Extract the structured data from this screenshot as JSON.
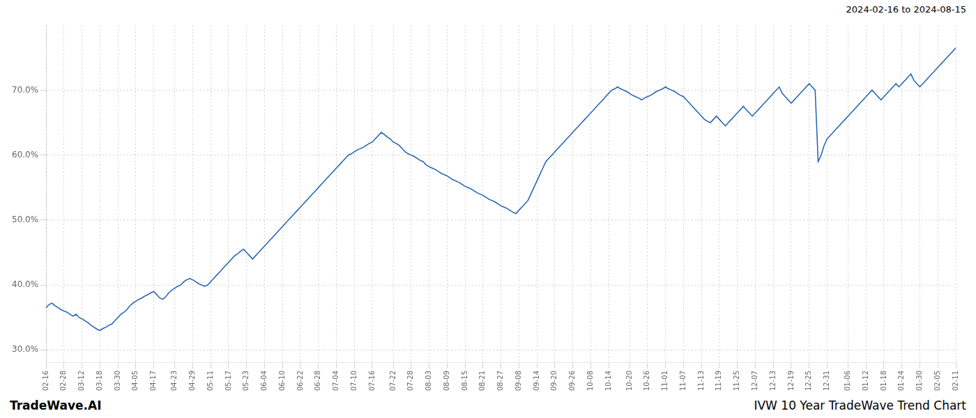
{
  "chart_data": {
    "type": "line",
    "title": "IVW 10 Year TradeWave Trend Chart",
    "annotations": [
      "2024-02-16 to 2024-08-15",
      "TradeWave.AI"
    ],
    "color": "#2060b0",
    "categories": [
      "02-16",
      null,
      null,
      null,
      null,
      null,
      "02-28",
      null,
      null,
      null,
      null,
      null,
      "03-12",
      null,
      null,
      null,
      null,
      null,
      "03-18",
      null,
      null,
      null,
      null,
      null,
      "03-30",
      null,
      null,
      null,
      null,
      null,
      "04-05",
      null,
      null,
      null,
      null,
      null,
      "04-17",
      null,
      null,
      null,
      null,
      null,
      null,
      "04-23",
      null,
      null,
      null,
      null,
      null,
      "04-29",
      null,
      null,
      null,
      null,
      null,
      "05-11",
      null,
      null,
      null,
      null,
      null,
      "05-17",
      null,
      null,
      null,
      null,
      null,
      "05-23",
      null,
      null,
      null,
      null,
      null,
      "06-04",
      null,
      null,
      null,
      null,
      null,
      "06-10",
      null,
      null,
      null,
      null,
      null,
      "06-22",
      null,
      null,
      null,
      null,
      null,
      "06-28",
      null,
      null,
      null,
      null,
      null,
      "07-04",
      null,
      null,
      null,
      null,
      null,
      "07-10",
      null,
      null,
      null,
      null,
      null,
      "07-16",
      null,
      null,
      null,
      null,
      null,
      null,
      "07-22",
      null,
      null,
      null,
      null,
      null,
      "07-28",
      null,
      null,
      null,
      null,
      null,
      "08-03",
      null,
      null,
      null,
      null,
      null,
      "08-09",
      null,
      null,
      null,
      null,
      null,
      "08-15",
      null,
      null,
      null,
      null,
      null,
      "08-21",
      null,
      null,
      null,
      null,
      null,
      "08-27",
      null,
      null,
      null,
      null,
      null,
      "09-08",
      null,
      null,
      null,
      null,
      null,
      "09-14",
      null,
      null,
      null,
      null,
      null,
      "09-20",
      null,
      null,
      null,
      null,
      null,
      "09-26",
      null,
      null,
      null,
      null,
      null,
      "10-08",
      null,
      null,
      null,
      null,
      null,
      "10-14",
      null,
      null,
      null,
      null,
      null,
      null,
      "10-20",
      null,
      null,
      null,
      null,
      null,
      "10-26",
      null,
      null,
      null,
      null,
      null,
      "11-01",
      null,
      null,
      null,
      null,
      null,
      "11-07",
      null,
      null,
      null,
      null,
      null,
      "11-13",
      null,
      null,
      null,
      null,
      null,
      "11-19",
      null,
      null,
      null,
      null,
      null,
      "11-25",
      null,
      null,
      null,
      null,
      null,
      "12-07",
      null,
      null,
      null,
      null,
      null,
      "12-13",
      null,
      null,
      null,
      null,
      null,
      "12-19",
      null,
      null,
      null,
      null,
      null,
      "12-25",
      null,
      null,
      null,
      null,
      null,
      "12-31",
      null,
      null,
      null,
      null,
      null,
      null,
      "01-06",
      null,
      null,
      null,
      null,
      null,
      "01-12",
      null,
      null,
      null,
      null,
      null,
      "01-18",
      null,
      null,
      null,
      null,
      null,
      "01-24",
      null,
      null,
      null,
      null,
      null,
      "01-30",
      null,
      null,
      null,
      null,
      null,
      "02-05",
      null,
      null,
      null,
      null,
      null,
      "02-11"
    ],
    "values": [
      36.5,
      37.0,
      37.2,
      36.8,
      36.5,
      36.2,
      36.0,
      35.8,
      35.5,
      35.2,
      35.5,
      35.0,
      34.8,
      34.5,
      34.2,
      33.8,
      33.5,
      33.2,
      33.0,
      33.3,
      33.5,
      33.8,
      34.0,
      34.5,
      35.0,
      35.5,
      35.8,
      36.2,
      36.8,
      37.2,
      37.5,
      37.8,
      38.0,
      38.3,
      38.5,
      38.8,
      39.0,
      38.5,
      38.0,
      37.8,
      38.2,
      38.8,
      39.2,
      39.5,
      39.8,
      40.0,
      40.5,
      40.8,
      41.0,
      40.8,
      40.5,
      40.2,
      40.0,
      39.8,
      40.0,
      40.5,
      41.0,
      41.5,
      42.0,
      42.5,
      43.0,
      43.5,
      44.0,
      44.5,
      44.8,
      45.2,
      45.5,
      45.0,
      44.5,
      44.0,
      44.5,
      45.0,
      45.5,
      46.0,
      46.5,
      47.0,
      47.5,
      48.0,
      48.5,
      49.0,
      49.5,
      50.0,
      50.5,
      51.0,
      51.5,
      52.0,
      52.5,
      53.0,
      53.5,
      54.0,
      54.5,
      55.0,
      55.5,
      56.0,
      56.5,
      57.0,
      57.5,
      58.0,
      58.5,
      59.0,
      59.5,
      60.0,
      60.2,
      60.5,
      60.8,
      61.0,
      61.2,
      61.5,
      61.8,
      62.0,
      62.5,
      63.0,
      63.5,
      63.2,
      62.8,
      62.5,
      62.0,
      61.8,
      61.5,
      61.0,
      60.5,
      60.2,
      60.0,
      59.8,
      59.5,
      59.2,
      59.0,
      58.5,
      58.2,
      58.0,
      57.8,
      57.5,
      57.2,
      57.0,
      56.8,
      56.5,
      56.2,
      56.0,
      55.8,
      55.5,
      55.2,
      55.0,
      54.8,
      54.5,
      54.2,
      54.0,
      53.8,
      53.5,
      53.2,
      53.0,
      52.8,
      52.5,
      52.2,
      52.0,
      51.8,
      51.5,
      51.2,
      51.0,
      51.5,
      52.0,
      52.5,
      53.0,
      54.0,
      55.0,
      56.0,
      57.0,
      58.0,
      59.0,
      59.5,
      60.0,
      60.5,
      61.0,
      61.5,
      62.0,
      62.5,
      63.0,
      63.5,
      64.0,
      64.5,
      65.0,
      65.5,
      66.0,
      66.5,
      67.0,
      67.5,
      68.0,
      68.5,
      69.0,
      69.5,
      70.0,
      70.2,
      70.5,
      70.2,
      70.0,
      69.8,
      69.5,
      69.2,
      69.0,
      68.8,
      68.5,
      68.8,
      69.0,
      69.2,
      69.5,
      69.8,
      70.0,
      70.2,
      70.5,
      70.2,
      70.0,
      69.8,
      69.5,
      69.2,
      69.0,
      68.5,
      68.0,
      67.5,
      67.0,
      66.5,
      66.0,
      65.5,
      65.2,
      65.0,
      65.5,
      66.0,
      65.5,
      65.0,
      64.5,
      65.0,
      65.5,
      66.0,
      66.5,
      67.0,
      67.5,
      67.0,
      66.5,
      66.0,
      66.5,
      67.0,
      67.5,
      68.0,
      68.5,
      69.0,
      69.5,
      70.0,
      70.5,
      69.5,
      69.0,
      68.5,
      68.0,
      68.5,
      69.0,
      69.5,
      70.0,
      70.5,
      71.0,
      70.5,
      70.0,
      59.0,
      60.0,
      61.5,
      62.5,
      63.0,
      63.5,
      64.0,
      64.5,
      65.0,
      65.5,
      66.0,
      66.5,
      67.0,
      67.5,
      68.0,
      68.5,
      69.0,
      69.5,
      70.0,
      69.5,
      69.0,
      68.5,
      69.0,
      69.5,
      70.0,
      70.5,
      71.0,
      70.5,
      71.0,
      71.5,
      72.0,
      72.5,
      71.5,
      71.0,
      70.5,
      71.0,
      71.5,
      72.0,
      72.5,
      73.0,
      73.5,
      74.0,
      74.5,
      75.0,
      75.5,
      76.0,
      76.5
    ],
    "ylim": [
      28.0,
      80.0
    ],
    "yticks": [
      {
        "value": 30.0,
        "label": "30.0%"
      },
      {
        "value": 40.0,
        "label": "40.0%"
      },
      {
        "value": 50.0,
        "label": "50.0%"
      },
      {
        "value": 60.0,
        "label": "60.0%"
      },
      {
        "value": 70.0,
        "label": "70.0%"
      }
    ],
    "grid": true
  }
}
